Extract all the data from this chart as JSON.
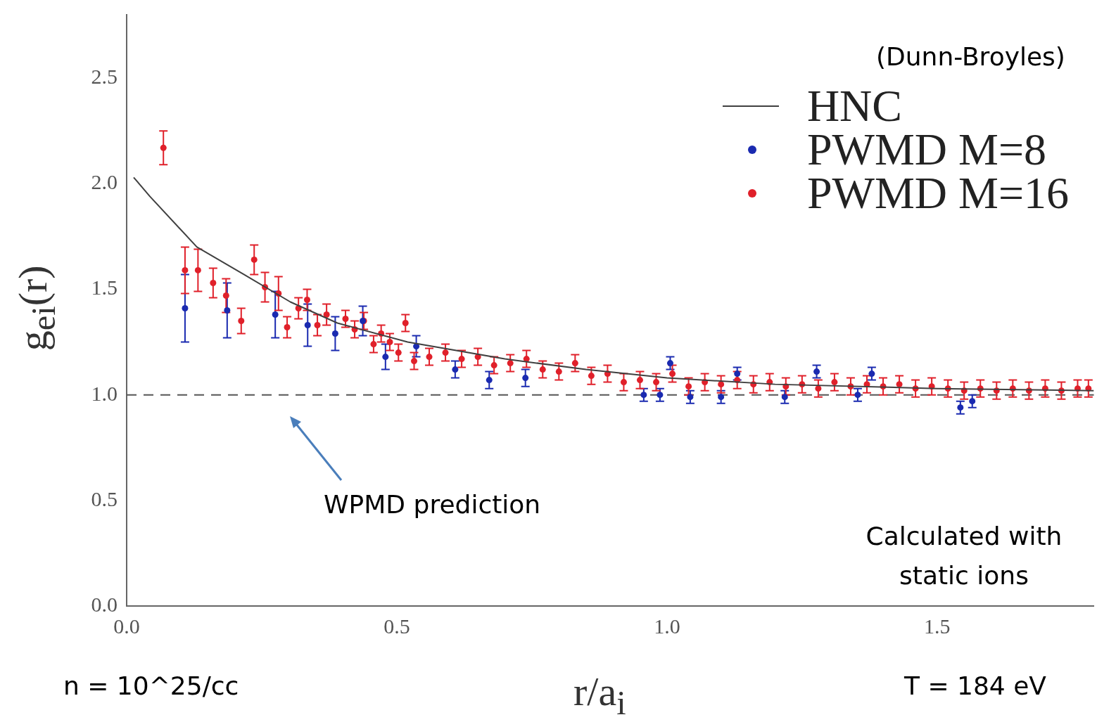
{
  "chart_data": {
    "type": "scatter",
    "xlabel": "r/a$_{i}$",
    "ylabel": "g$_{ei}$(r)",
    "xlim": [
      0,
      1.79
    ],
    "ylim": [
      0,
      2.8
    ],
    "xticks": [
      {
        "value": 0,
        "label": "0.0"
      },
      0.5,
      {
        "value": 1,
        "label": "1.0"
      },
      1.5
    ],
    "yticks": [
      {
        "value": 0,
        "label": "0.0"
      },
      0.5,
      {
        "value": 1,
        "label": "1.0"
      },
      1.5,
      {
        "value": 2,
        "label": "2.0"
      },
      2.5
    ],
    "grid": false,
    "legend": "top right",
    "marker": "circle",
    "ref_lines": [
      {
        "axis": "y",
        "value": 1,
        "color": "#555555",
        "line_style": "dashed"
      }
    ],
    "annotations": [
      "(Dunn-Broyles)",
      "Calculated with static ions",
      "n = 10^25/cc",
      "T = 184 eV",
      "WPMD prediction"
    ],
    "series": [
      {
        "name": "HNC",
        "type": "line",
        "marker": "none",
        "color": "#404040",
        "x": [
          0.013,
          0.043,
          0.13,
          0.217,
          0.303,
          0.39,
          0.52,
          0.7,
          0.85,
          1.0,
          1.2,
          1.5,
          1.79
        ],
        "values": [
          2.03,
          1.94,
          1.7,
          1.57,
          1.44,
          1.34,
          1.25,
          1.17,
          1.12,
          1.08,
          1.05,
          1.03,
          1.02
        ]
      },
      {
        "name": "PWMD M=8",
        "color": "#1a2ab0",
        "x": [
          0.108,
          0.186,
          0.275,
          0.335,
          0.386,
          0.437,
          0.479,
          0.536,
          0.608,
          0.671,
          0.738,
          0.957,
          0.987,
          1.006,
          1.043,
          1.1,
          1.13,
          1.218,
          1.277,
          1.353,
          1.379,
          1.543,
          1.565
        ],
        "values": [
          1.41,
          1.4,
          1.38,
          1.33,
          1.29,
          1.35,
          1.18,
          1.23,
          1.12,
          1.07,
          1.08,
          1.0,
          1.0,
          1.15,
          0.99,
          0.99,
          1.1,
          0.99,
          1.11,
          1.0,
          1.1,
          0.94,
          0.97
        ],
        "errors": [
          0.16,
          0.13,
          0.11,
          0.1,
          0.08,
          0.07,
          0.06,
          0.05,
          0.04,
          0.04,
          0.04,
          0.03,
          0.03,
          0.03,
          0.03,
          0.03,
          0.03,
          0.03,
          0.03,
          0.03,
          0.03,
          0.03,
          0.03
        ]
      },
      {
        "name": "PWMD M=16",
        "color": "#e0202a",
        "x": [
          0.068,
          0.108,
          0.132,
          0.16,
          0.184,
          0.212,
          0.236,
          0.256,
          0.281,
          0.297,
          0.318,
          0.334,
          0.353,
          0.37,
          0.405,
          0.422,
          0.439,
          0.457,
          0.471,
          0.487,
          0.503,
          0.516,
          0.532,
          0.56,
          0.59,
          0.62,
          0.65,
          0.68,
          0.71,
          0.74,
          0.77,
          0.8,
          0.83,
          0.86,
          0.89,
          0.92,
          0.95,
          0.98,
          1.01,
          1.04,
          1.07,
          1.1,
          1.13,
          1.16,
          1.19,
          1.22,
          1.25,
          1.28,
          1.31,
          1.34,
          1.37,
          1.4,
          1.43,
          1.46,
          1.49,
          1.52,
          1.55,
          1.58,
          1.61,
          1.64,
          1.67,
          1.7,
          1.73,
          1.76,
          1.78
        ],
        "values": [
          2.17,
          1.59,
          1.59,
          1.53,
          1.47,
          1.35,
          1.64,
          1.51,
          1.48,
          1.32,
          1.41,
          1.45,
          1.33,
          1.38,
          1.36,
          1.31,
          1.35,
          1.24,
          1.29,
          1.25,
          1.2,
          1.34,
          1.16,
          1.18,
          1.2,
          1.17,
          1.18,
          1.14,
          1.15,
          1.17,
          1.12,
          1.11,
          1.15,
          1.09,
          1.1,
          1.06,
          1.07,
          1.06,
          1.1,
          1.04,
          1.06,
          1.05,
          1.07,
          1.05,
          1.06,
          1.04,
          1.05,
          1.03,
          1.06,
          1.04,
          1.05,
          1.04,
          1.05,
          1.03,
          1.04,
          1.03,
          1.02,
          1.03,
          1.02,
          1.03,
          1.02,
          1.03,
          1.02,
          1.03,
          1.03
        ],
        "errors": [
          0.08,
          0.11,
          0.1,
          0.07,
          0.08,
          0.06,
          0.07,
          0.07,
          0.08,
          0.05,
          0.05,
          0.05,
          0.05,
          0.05,
          0.04,
          0.04,
          0.04,
          0.04,
          0.04,
          0.04,
          0.04,
          0.04,
          0.04,
          0.04,
          0.04,
          0.04,
          0.04,
          0.04,
          0.04,
          0.04,
          0.04,
          0.04,
          0.04,
          0.04,
          0.04,
          0.04,
          0.04,
          0.04,
          0.04,
          0.04,
          0.04,
          0.04,
          0.04,
          0.04,
          0.04,
          0.04,
          0.04,
          0.04,
          0.04,
          0.04,
          0.04,
          0.04,
          0.04,
          0.04,
          0.04,
          0.04,
          0.04,
          0.04,
          0.04,
          0.04,
          0.04,
          0.04,
          0.04,
          0.04,
          0.04
        ]
      }
    ]
  }
}
